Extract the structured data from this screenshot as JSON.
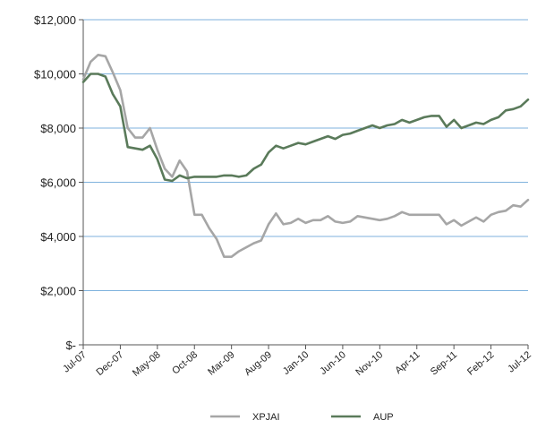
{
  "chart_data": {
    "type": "line",
    "title": "",
    "xlabel": "",
    "ylabel": "",
    "ylim": [
      0,
      12000
    ],
    "y_ticks": [
      {
        "value": 0,
        "label": "$-"
      },
      {
        "value": 2000,
        "label": "$2,000"
      },
      {
        "value": 4000,
        "label": "$4,000"
      },
      {
        "value": 6000,
        "label": "$6,000"
      },
      {
        "value": 8000,
        "label": "$8,000"
      },
      {
        "value": 10000,
        "label": "$10,000"
      },
      {
        "value": 12000,
        "label": "$12,000"
      }
    ],
    "x_ticks": [
      "Jul-07",
      "Dec-07",
      "May-08",
      "Oct-08",
      "Mar-09",
      "Aug-09",
      "Jan-10",
      "Jun-10",
      "Nov-10",
      "Apr-11",
      "Sep-11",
      "Feb-12",
      "Jul-12"
    ],
    "x": [
      "Jul-07",
      "Aug-07",
      "Sep-07",
      "Oct-07",
      "Nov-07",
      "Dec-07",
      "Jan-08",
      "Feb-08",
      "Mar-08",
      "Apr-08",
      "May-08",
      "Jun-08",
      "Jul-08",
      "Aug-08",
      "Sep-08",
      "Oct-08",
      "Nov-08",
      "Dec-08",
      "Jan-09",
      "Feb-09",
      "Mar-09",
      "Apr-09",
      "May-09",
      "Jun-09",
      "Jul-09",
      "Aug-09",
      "Sep-09",
      "Oct-09",
      "Nov-09",
      "Dec-09",
      "Jan-10",
      "Feb-10",
      "Mar-10",
      "Apr-10",
      "May-10",
      "Jun-10",
      "Jul-10",
      "Aug-10",
      "Sep-10",
      "Oct-10",
      "Nov-10",
      "Dec-10",
      "Jan-11",
      "Feb-11",
      "Mar-11",
      "Apr-11",
      "May-11",
      "Jun-11",
      "Jul-11",
      "Aug-11",
      "Sep-11",
      "Oct-11",
      "Nov-11",
      "Dec-11",
      "Jan-12",
      "Feb-12",
      "Mar-12",
      "Apr-12",
      "May-12",
      "Jun-12",
      "Jul-12"
    ],
    "grid": true,
    "legend_position": "bottom",
    "series": [
      {
        "name": "XPJAI",
        "color": "#a6a6a6",
        "values": [
          9800,
          10450,
          10700,
          10650,
          10050,
          9400,
          8000,
          7650,
          7650,
          8000,
          7200,
          6500,
          6200,
          6800,
          6400,
          4800,
          4800,
          4300,
          3900,
          3250,
          3250,
          3450,
          3600,
          3750,
          3850,
          4450,
          4850,
          4450,
          4500,
          4650,
          4500,
          4600,
          4600,
          4750,
          4550,
          4500,
          4550,
          4750,
          4700,
          4650,
          4600,
          4650,
          4750,
          4900,
          4800,
          4800,
          4800,
          4800,
          4800,
          4450,
          4600,
          4400,
          4550,
          4700,
          4550,
          4800,
          4900,
          4950,
          5150,
          5100,
          5350
        ]
      },
      {
        "name": "AUP",
        "color": "#5a7a5a",
        "values": [
          9700,
          10000,
          10000,
          9900,
          9250,
          8800,
          7300,
          7250,
          7200,
          7350,
          6850,
          6100,
          6050,
          6250,
          6150,
          6200,
          6200,
          6200,
          6200,
          6250,
          6250,
          6200,
          6250,
          6500,
          6650,
          7100,
          7350,
          7250,
          7350,
          7450,
          7400,
          7500,
          7600,
          7700,
          7600,
          7750,
          7800,
          7900,
          8000,
          8100,
          8000,
          8100,
          8150,
          8300,
          8200,
          8300,
          8400,
          8450,
          8450,
          8050,
          8300,
          8000,
          8100,
          8200,
          8150,
          8300,
          8400,
          8650,
          8700,
          8800,
          9050
        ]
      }
    ]
  }
}
